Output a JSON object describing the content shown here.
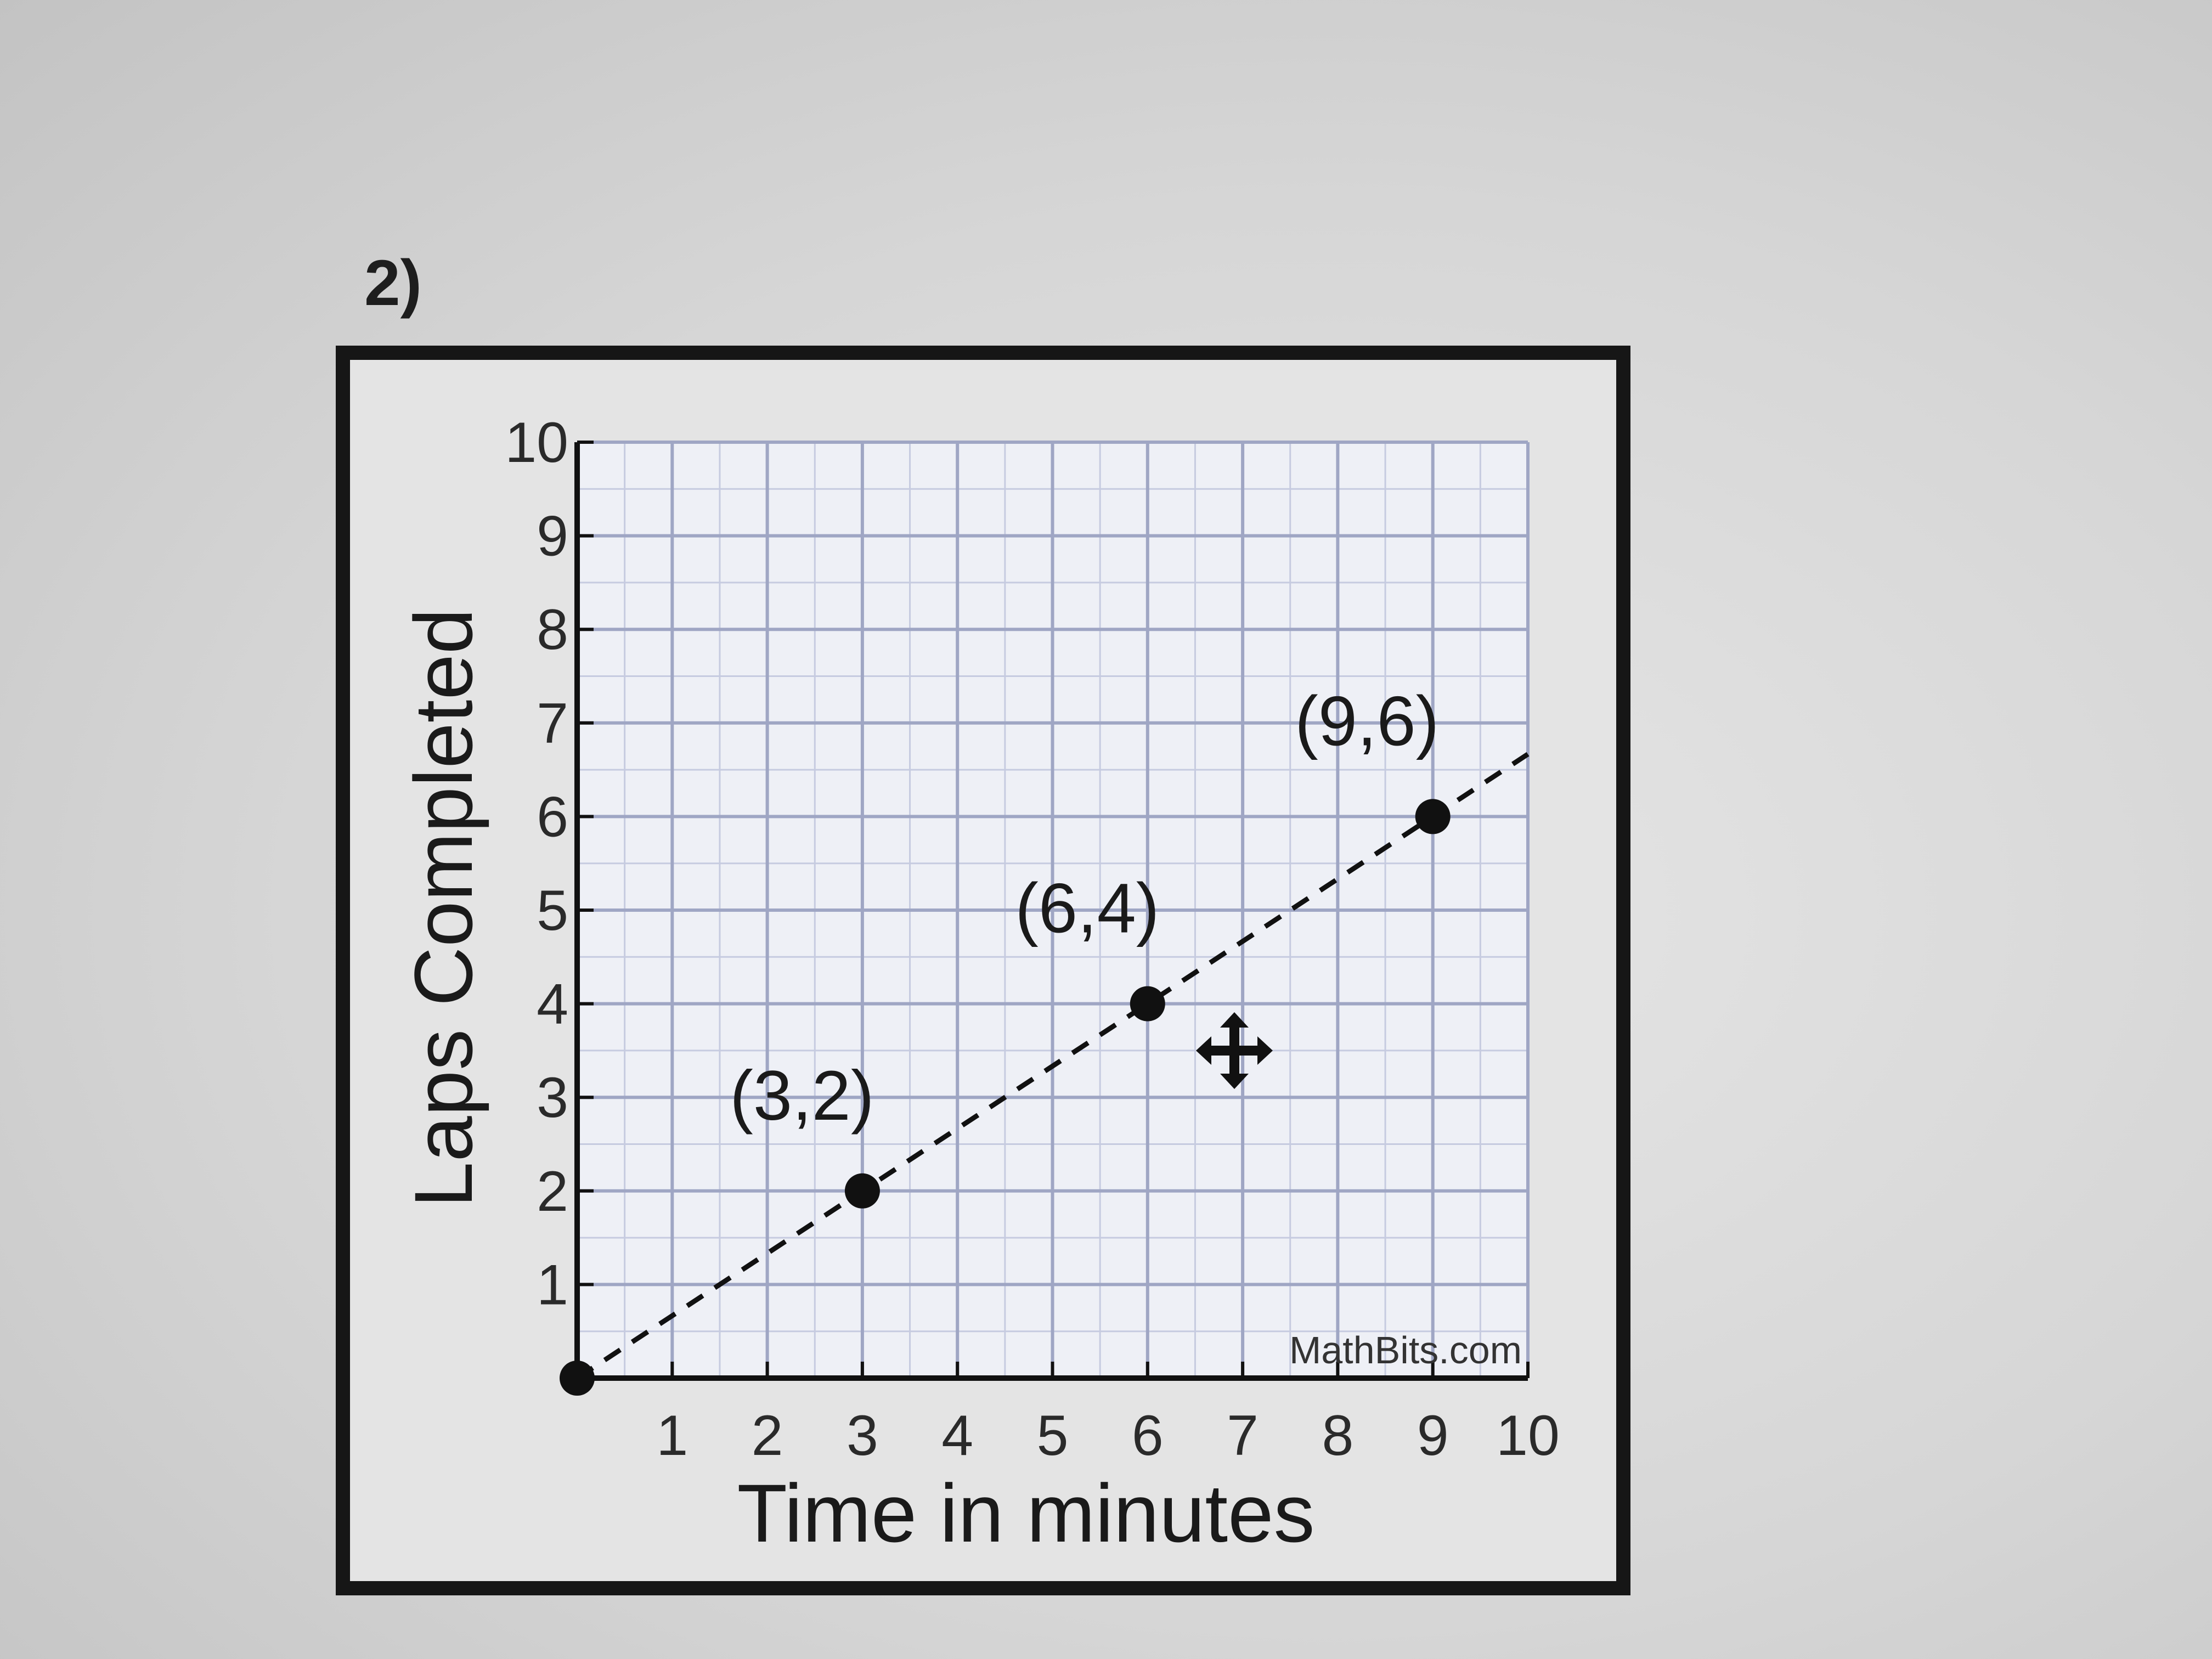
{
  "question": {
    "number": "2)"
  },
  "chart_data": {
    "type": "scatter",
    "xlabel": "Time in minutes",
    "ylabel": "Laps Completed",
    "xlim": [
      0,
      10
    ],
    "ylim": [
      0,
      10
    ],
    "x_ticks": [
      "1",
      "2",
      "3",
      "4",
      "5",
      "6",
      "7",
      "8",
      "9",
      "10"
    ],
    "y_ticks": [
      "1",
      "2",
      "3",
      "4",
      "5",
      "6",
      "7",
      "8",
      "9",
      "10"
    ],
    "grid": true,
    "series": [
      {
        "points": [
          {
            "x": 0,
            "y": 0,
            "label": ""
          },
          {
            "x": 3,
            "y": 2,
            "label": "(3,2)"
          },
          {
            "x": 6,
            "y": 4,
            "label": "(6,4)"
          },
          {
            "x": 9,
            "y": 6,
            "label": "(9,6)"
          }
        ],
        "line_style": "dashed",
        "line_extends_to_x": 10
      }
    ],
    "watermark": "MathBits.com",
    "colors": {
      "points": "#111111",
      "grid": "#9fa6c4",
      "frame": "#161616"
    }
  },
  "overlay": {
    "cursor_icon": "move-cursor-icon"
  }
}
